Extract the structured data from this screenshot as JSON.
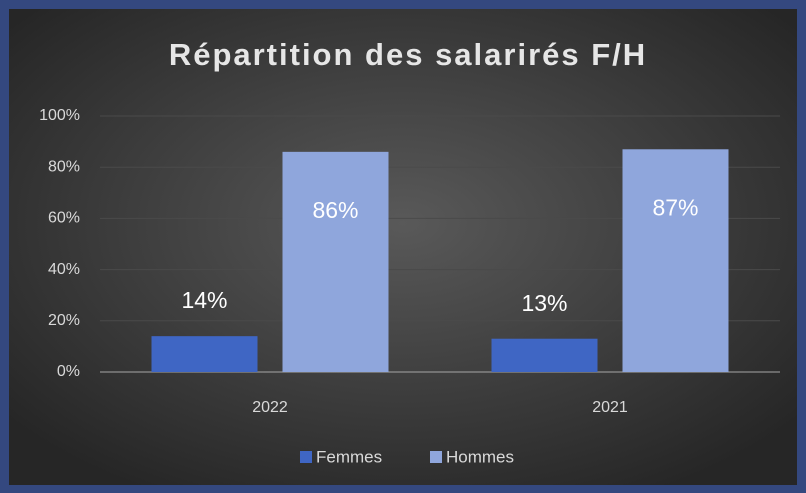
{
  "chart_data": {
    "type": "bar",
    "title": "Répartition des salarirés F/H",
    "categories": [
      "2022",
      "2021"
    ],
    "series": [
      {
        "name": "Femmes",
        "color": "#3f66c4",
        "values": [
          14,
          13
        ],
        "value_labels": [
          "14%",
          "13%"
        ]
      },
      {
        "name": "Hommes",
        "color": "#8fa6dc",
        "values": [
          86,
          87
        ],
        "value_labels": [
          "86%",
          "87%"
        ]
      }
    ],
    "ylim": [
      0,
      100
    ],
    "yticks": [
      {
        "value": 0,
        "label": "0%"
      },
      {
        "value": 20,
        "label": "20%"
      },
      {
        "value": 40,
        "label": "40%"
      },
      {
        "value": 60,
        "label": "60%"
      },
      {
        "value": 80,
        "label": "80%"
      },
      {
        "value": 100,
        "label": "100%"
      }
    ],
    "grid": true,
    "legend": "bottom"
  }
}
